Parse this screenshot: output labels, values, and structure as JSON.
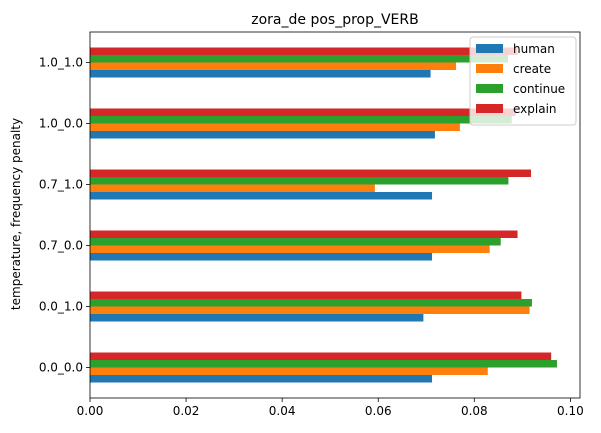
{
  "chart_data": {
    "type": "bar",
    "orientation": "horizontal",
    "title": "zora_de pos_prop_VERB",
    "xlabel": "",
    "ylabel": "temperature, frequency penalty",
    "xlim": [
      0,
      0.102
    ],
    "xticks": [
      "0.00",
      "0.02",
      "0.04",
      "0.06",
      "0.08",
      "0.10"
    ],
    "grid": false,
    "legend_position": "top-right",
    "categories": [
      "0.0_0.0",
      "0.0_1.0",
      "0.7_0.0",
      "0.7_1.0",
      "1.0_0.0",
      "1.0_1.0"
    ],
    "series": [
      {
        "name": "human",
        "color": "#1f77b4",
        "values": [
          0.0712,
          0.0694,
          0.0712,
          0.0712,
          0.0718,
          0.0709
        ]
      },
      {
        "name": "create",
        "color": "#ff7f0e",
        "values": [
          0.0828,
          0.0915,
          0.0832,
          0.0593,
          0.077,
          0.0762
        ]
      },
      {
        "name": "continue",
        "color": "#2ca02c",
        "values": [
          0.0972,
          0.092,
          0.0855,
          0.0871,
          0.0878,
          0.087
        ]
      },
      {
        "name": "explain",
        "color": "#d62728",
        "values": [
          0.096,
          0.0898,
          0.089,
          0.0918,
          0.0886,
          0.089
        ]
      }
    ]
  }
}
